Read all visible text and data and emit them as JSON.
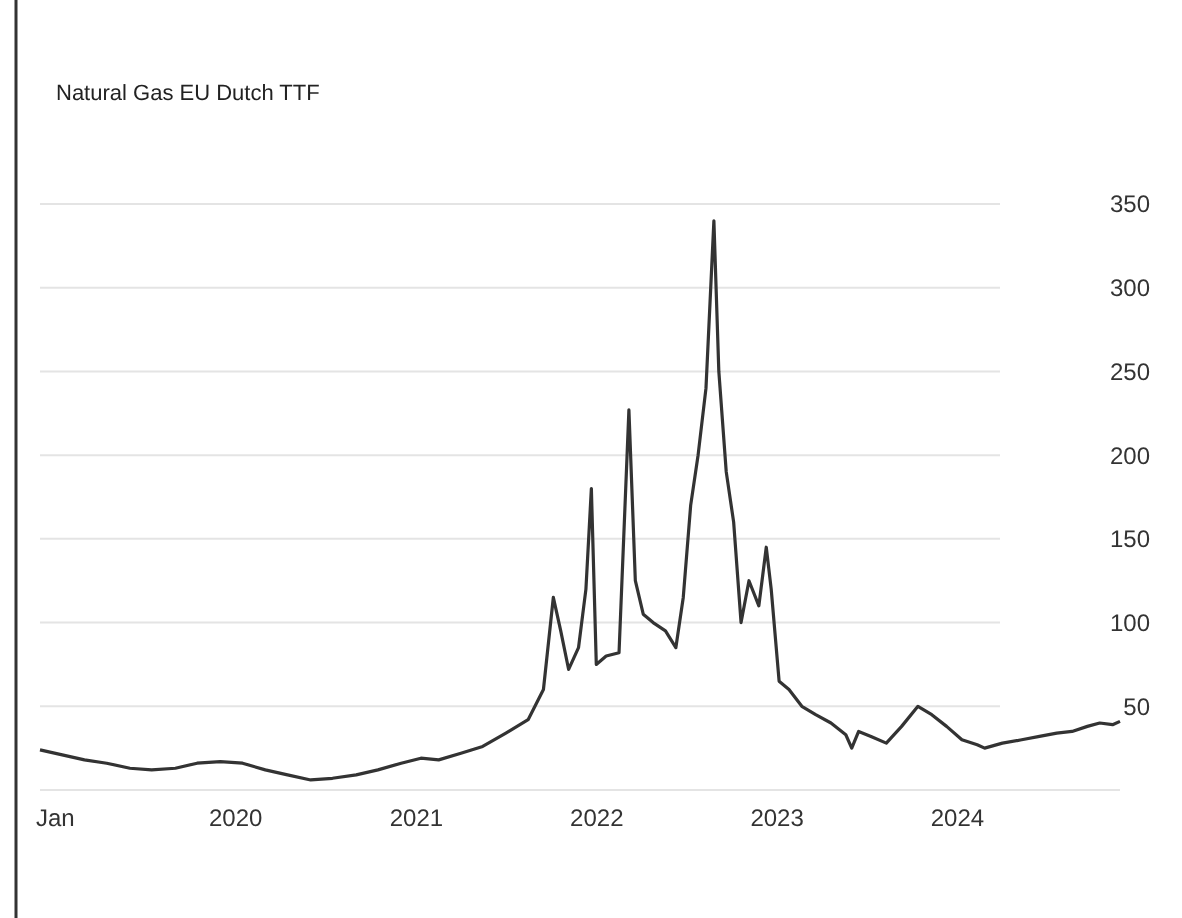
{
  "chart_data": {
    "type": "line",
    "title": "Natural Gas EU Dutch TTF",
    "x": [
      "2018-12-01",
      "2019-01-15",
      "2019-03-01",
      "2019-04-15",
      "2019-06-01",
      "2019-07-15",
      "2019-09-01",
      "2019-10-15",
      "2019-12-01",
      "2020-01-15",
      "2020-03-01",
      "2020-04-15",
      "2020-06-01",
      "2020-07-15",
      "2020-09-01",
      "2020-10-15",
      "2020-12-01",
      "2021-01-10",
      "2021-02-15",
      "2021-04-01",
      "2021-05-15",
      "2021-07-01",
      "2021-08-15",
      "2021-09-15",
      "2021-10-05",
      "2021-10-20",
      "2021-11-05",
      "2021-11-25",
      "2021-12-10",
      "2021-12-21",
      "2021-12-31",
      "2022-01-20",
      "2022-02-15",
      "2022-03-07",
      "2022-03-20",
      "2022-04-05",
      "2022-04-25",
      "2022-05-20",
      "2022-06-10",
      "2022-06-25",
      "2022-07-10",
      "2022-07-25",
      "2022-08-10",
      "2022-08-26",
      "2022-09-05",
      "2022-09-20",
      "2022-10-05",
      "2022-10-20",
      "2022-11-05",
      "2022-11-25",
      "2022-12-10",
      "2022-12-20",
      "2023-01-05",
      "2023-01-25",
      "2023-02-20",
      "2023-03-20",
      "2023-04-20",
      "2023-05-20",
      "2023-06-01",
      "2023-06-15",
      "2023-07-10",
      "2023-08-10",
      "2023-09-10",
      "2023-10-13",
      "2023-11-10",
      "2023-12-10",
      "2024-01-10",
      "2024-02-10",
      "2024-02-25",
      "2024-04-01",
      "2024-05-10",
      "2024-06-15",
      "2024-07-20",
      "2024-08-20",
      "2024-09-20",
      "2024-10-15",
      "2024-11-10",
      "2024-11-25"
    ],
    "series": [
      {
        "color": "#333333",
        "values": [
          24,
          21,
          18,
          16,
          13,
          12,
          13,
          16,
          17,
          16,
          12,
          9,
          6,
          7,
          9,
          12,
          16,
          19,
          18,
          22,
          26,
          34,
          42,
          60,
          115,
          95,
          72,
          85,
          120,
          180,
          75,
          80,
          82,
          227,
          125,
          105,
          100,
          95,
          85,
          115,
          170,
          200,
          240,
          340,
          250,
          190,
          160,
          100,
          125,
          110,
          145,
          120,
          65,
          60,
          50,
          45,
          40,
          33,
          25,
          35,
          32,
          28,
          38,
          50,
          45,
          38,
          30,
          27,
          25,
          28,
          30,
          32,
          34,
          35,
          38,
          40,
          39,
          41
        ]
      }
    ],
    "xticks": [
      {
        "value": "2019-01-01",
        "label": "Jan"
      },
      {
        "value": "2020-01-01",
        "label": "2020"
      },
      {
        "value": "2021-01-01",
        "label": "2021"
      },
      {
        "value": "2022-01-01",
        "label": "2022"
      },
      {
        "value": "2023-01-01",
        "label": "2023"
      },
      {
        "value": "2024-01-01",
        "label": "2024"
      }
    ],
    "xlim": [
      "2018-12-01",
      "2024-11-25"
    ],
    "ylim": [
      0,
      350
    ],
    "yticks": [
      50,
      100,
      150,
      200,
      250,
      300,
      350
    ],
    "grid": "y"
  }
}
